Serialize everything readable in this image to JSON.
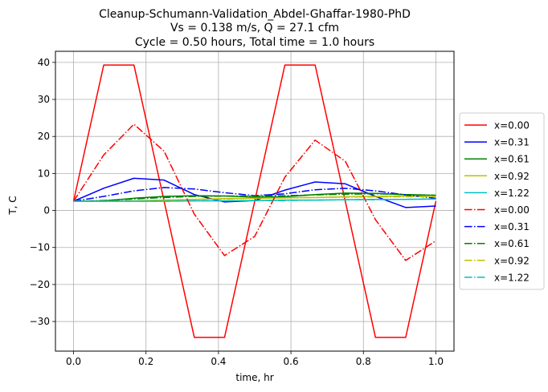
{
  "chart_data": {
    "type": "line",
    "title_lines": [
      "Cleanup-Schumann-Validation_Abdel-Ghaffar-1980-PhD",
      "Vs = 0.138 m/s, Q = 27.1 cfm",
      "Cycle = 0.50 hours, Total time = 1.0 hours"
    ],
    "xlabel": "time, hr",
    "ylabel": "T, C",
    "xlim": [
      -0.05,
      1.05
    ],
    "ylim": [
      -38,
      43
    ],
    "xticks": [
      0.0,
      0.2,
      0.4,
      0.6,
      0.8,
      1.0
    ],
    "xtick_labels": [
      "0.0",
      "0.2",
      "0.4",
      "0.6",
      "0.8",
      "1.0"
    ],
    "yticks": [
      -30,
      -20,
      -10,
      0,
      10,
      20,
      30,
      40
    ],
    "ytick_labels": [
      "−30",
      "−20",
      "−10",
      "0",
      "10",
      "20",
      "30",
      "40"
    ],
    "grid": true,
    "legend_position": "right-outside",
    "x": [
      0.0,
      0.0833,
      0.1667,
      0.25,
      0.3333,
      0.4167,
      0.5,
      0.5833,
      0.6667,
      0.75,
      0.8333,
      0.9167,
      1.0
    ],
    "series": [
      {
        "name": "x=0.00",
        "color": "#ff0000",
        "style": "solid",
        "values": [
          2.5,
          39.3,
          39.3,
          2.5,
          -34.3,
          -34.3,
          2.5,
          39.3,
          39.3,
          2.5,
          -34.3,
          -34.3,
          2.5
        ]
      },
      {
        "name": "x=0.31",
        "color": "#0000ff",
        "style": "solid",
        "values": [
          2.5,
          6.0,
          8.7,
          8.2,
          4.3,
          2.3,
          2.7,
          5.5,
          7.7,
          7.2,
          3.8,
          0.8,
          1.2
        ]
      },
      {
        "name": "x=0.61",
        "color": "#008000",
        "style": "solid",
        "values": [
          2.5,
          2.6,
          3.3,
          3.8,
          4.0,
          3.9,
          3.6,
          3.7,
          4.3,
          4.7,
          4.6,
          4.3,
          4.1
        ]
      },
      {
        "name": "x=0.92",
        "color": "#bfbf00",
        "style": "solid",
        "values": [
          2.5,
          2.5,
          2.6,
          2.8,
          3.0,
          3.2,
          3.3,
          3.4,
          3.5,
          3.7,
          3.8,
          3.9,
          3.9
        ]
      },
      {
        "name": "x=1.22",
        "color": "#00bfbf",
        "style": "solid",
        "values": [
          2.5,
          2.5,
          2.5,
          2.5,
          2.6,
          2.6,
          2.7,
          2.8,
          2.8,
          2.9,
          3.0,
          3.0,
          3.1
        ]
      },
      {
        "name": "x=0.00",
        "color": "#ff0000",
        "style": "dashdot",
        "values": [
          2.5,
          15.0,
          23.3,
          16.0,
          -1.0,
          -12.2,
          -7.0,
          9.0,
          19.0,
          13.3,
          -2.5,
          -13.5,
          -8.2
        ]
      },
      {
        "name": "x=0.31",
        "color": "#0000ff",
        "style": "dashdot",
        "values": [
          2.5,
          3.8,
          5.3,
          6.2,
          5.8,
          4.8,
          4.0,
          4.5,
          5.6,
          6.0,
          5.3,
          4.2,
          3.3
        ]
      },
      {
        "name": "x=0.61",
        "color": "#008000",
        "style": "dashdot",
        "values": [
          2.5,
          2.7,
          3.1,
          3.5,
          3.8,
          3.9,
          3.9,
          4.0,
          4.2,
          4.4,
          4.5,
          4.3,
          4.1
        ]
      },
      {
        "name": "x=0.92",
        "color": "#bfbf00",
        "style": "dashdot",
        "values": [
          2.5,
          2.5,
          2.6,
          2.8,
          3.0,
          3.1,
          3.3,
          3.4,
          3.5,
          3.6,
          3.7,
          3.7,
          3.8
        ]
      },
      {
        "name": "x=1.22",
        "color": "#00bfbf",
        "style": "dashdot",
        "values": [
          2.5,
          2.5,
          2.5,
          2.5,
          2.6,
          2.6,
          2.7,
          2.7,
          2.8,
          2.9,
          2.9,
          3.0,
          3.1
        ]
      }
    ]
  }
}
